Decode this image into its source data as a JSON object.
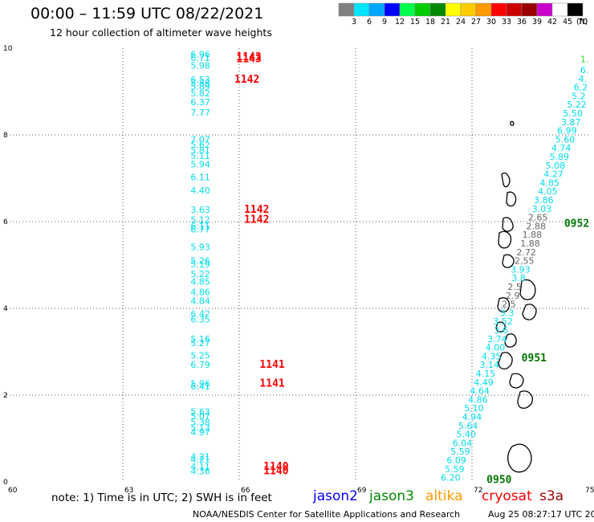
{
  "header": {
    "title": "00:00 – 11:59 UTC 08/22/2021",
    "subtitle": "12 hour collection of altimeter wave heights"
  },
  "colorbar": {
    "unit": "(ft)",
    "bins": [
      {
        "color": "#808080",
        "label": ""
      },
      {
        "color": "#00e5ff",
        "label": "3"
      },
      {
        "color": "#00a8ff",
        "label": "6"
      },
      {
        "color": "#0000ff",
        "label": "9"
      },
      {
        "color": "#00ff4c",
        "label": "12"
      },
      {
        "color": "#00cc00",
        "label": "15"
      },
      {
        "color": "#008800",
        "label": "18"
      },
      {
        "color": "#ffff00",
        "label": "21"
      },
      {
        "color": "#ffcc00",
        "label": "24"
      },
      {
        "color": "#ff9900",
        "label": "27"
      },
      {
        "color": "#ff0000",
        "label": "30"
      },
      {
        "color": "#cc0000",
        "label": "33"
      },
      {
        "color": "#990000",
        "label": "36"
      },
      {
        "color": "#cc00cc",
        "label": "39"
      },
      {
        "color": "#ffffff",
        "label": "42"
      },
      {
        "color": "#000000",
        "label": "45"
      }
    ],
    "tick_labels": [
      "3",
      "6",
      "9",
      "12",
      "15",
      "18",
      "21",
      "24",
      "27",
      "30",
      "33",
      "36",
      "39",
      "42",
      "45",
      "70"
    ]
  },
  "chart_data": {
    "type": "scatter",
    "title": "00:00 – 11:59 UTC 08/22/2021",
    "subtitle": "12 hour collection of altimeter wave heights",
    "xlim": [
      60,
      75
    ],
    "ylim": [
      0,
      10
    ],
    "x_ticks": [
      "60",
      "63",
      "66",
      "69",
      "72",
      "75"
    ],
    "y_ticks": [
      "0",
      "2",
      "4",
      "6",
      "8",
      "10"
    ],
    "grid": true,
    "colors": {
      "swh": "#00ddee",
      "time_red": "#ff0000",
      "time_green": "#007700",
      "swh_gray": "#666666"
    },
    "swh_points": [
      {
        "x": 65.0,
        "y": 9.86,
        "v": "6.96"
      },
      {
        "x": 65.0,
        "y": 9.78,
        "v": "6.71"
      },
      {
        "x": 65.0,
        "y": 9.6,
        "v": "5.98"
      },
      {
        "x": 65.0,
        "y": 9.28,
        "v": "6.53"
      },
      {
        "x": 65.0,
        "y": 9.19,
        "v": "5.88"
      },
      {
        "x": 65.0,
        "y": 9.12,
        "v": "5.89"
      },
      {
        "x": 65.0,
        "y": 8.96,
        "v": "5.82"
      },
      {
        "x": 65.0,
        "y": 8.76,
        "v": "6.37"
      },
      {
        "x": 65.0,
        "y": 8.52,
        "v": "7.77"
      },
      {
        "x": 65.0,
        "y": 7.9,
        "v": "7.07"
      },
      {
        "x": 65.0,
        "y": 7.78,
        "v": "5.62"
      },
      {
        "x": 65.0,
        "y": 7.65,
        "v": "5.81"
      },
      {
        "x": 65.0,
        "y": 7.52,
        "v": "5.11"
      },
      {
        "x": 65.0,
        "y": 7.32,
        "v": "5.94"
      },
      {
        "x": 65.0,
        "y": 7.03,
        "v": "6.11"
      },
      {
        "x": 65.0,
        "y": 6.72,
        "v": "4.40"
      },
      {
        "x": 65.0,
        "y": 6.28,
        "v": "3.63"
      },
      {
        "x": 65.0,
        "y": 6.05,
        "v": "5.12"
      },
      {
        "x": 65.0,
        "y": 5.9,
        "v": "6.11"
      },
      {
        "x": 65.0,
        "y": 5.82,
        "v": "6.77"
      },
      {
        "x": 65.0,
        "y": 5.42,
        "v": "5.93"
      },
      {
        "x": 65.0,
        "y": 5.1,
        "v": "5.26"
      },
      {
        "x": 65.0,
        "y": 5.02,
        "v": "5.19"
      },
      {
        "x": 65.0,
        "y": 4.8,
        "v": "5.22"
      },
      {
        "x": 65.0,
        "y": 4.62,
        "v": "4.85"
      },
      {
        "x": 65.0,
        "y": 4.38,
        "v": "4.86"
      },
      {
        "x": 65.0,
        "y": 4.18,
        "v": "4.84"
      },
      {
        "x": 65.0,
        "y": 3.88,
        "v": "6.42"
      },
      {
        "x": 65.0,
        "y": 3.75,
        "v": "6.35"
      },
      {
        "x": 65.0,
        "y": 3.3,
        "v": "5.16"
      },
      {
        "x": 65.0,
        "y": 3.2,
        "v": "5.27"
      },
      {
        "x": 65.0,
        "y": 2.92,
        "v": "5.25"
      },
      {
        "x": 65.0,
        "y": 2.7,
        "v": "6.79"
      },
      {
        "x": 65.0,
        "y": 2.27,
        "v": "5.96"
      },
      {
        "x": 65.0,
        "y": 2.2,
        "v": "6.41"
      },
      {
        "x": 65.0,
        "y": 1.62,
        "v": "5.63"
      },
      {
        "x": 65.0,
        "y": 1.52,
        "v": "5.07"
      },
      {
        "x": 65.0,
        "y": 1.38,
        "v": "5.38"
      },
      {
        "x": 65.0,
        "y": 1.25,
        "v": "5.13"
      },
      {
        "x": 65.0,
        "y": 1.15,
        "v": "4.97"
      },
      {
        "x": 65.0,
        "y": 0.58,
        "v": "4.21"
      },
      {
        "x": 65.0,
        "y": 0.52,
        "v": "4.21"
      },
      {
        "x": 65.0,
        "y": 0.35,
        "v": "4.11"
      },
      {
        "x": 65.0,
        "y": 0.25,
        "v": "4.36"
      },
      {
        "x": 74.9,
        "y": 9.75,
        "v": "1.",
        "c": "green"
      },
      {
        "x": 74.9,
        "y": 9.5,
        "v": "6."
      },
      {
        "x": 74.85,
        "y": 9.3,
        "v": "4."
      },
      {
        "x": 74.8,
        "y": 9.1,
        "v": "6.2"
      },
      {
        "x": 74.75,
        "y": 8.9,
        "v": "5.2"
      },
      {
        "x": 74.7,
        "y": 8.7,
        "v": "5.22"
      },
      {
        "x": 74.6,
        "y": 8.5,
        "v": "5.50"
      },
      {
        "x": 74.55,
        "y": 8.3,
        "v": "3.87"
      },
      {
        "x": 74.45,
        "y": 8.1,
        "v": "6.99"
      },
      {
        "x": 74.4,
        "y": 7.9,
        "v": "5.60"
      },
      {
        "x": 74.3,
        "y": 7.7,
        "v": "4.74"
      },
      {
        "x": 74.25,
        "y": 7.5,
        "v": "5.89"
      },
      {
        "x": 74.15,
        "y": 7.3,
        "v": "5.08"
      },
      {
        "x": 74.1,
        "y": 7.1,
        "v": "4.27"
      },
      {
        "x": 74.0,
        "y": 6.9,
        "v": "4.85"
      },
      {
        "x": 73.95,
        "y": 6.7,
        "v": "4.05"
      },
      {
        "x": 73.85,
        "y": 6.5,
        "v": "3.86"
      },
      {
        "x": 73.8,
        "y": 6.3,
        "v": "3.03"
      },
      {
        "x": 73.7,
        "y": 6.1,
        "v": "2.65",
        "c": "gray"
      },
      {
        "x": 73.65,
        "y": 5.9,
        "v": "2.88",
        "c": "gray"
      },
      {
        "x": 73.55,
        "y": 5.7,
        "v": "1.88",
        "c": "gray"
      },
      {
        "x": 73.5,
        "y": 5.5,
        "v": "1.88",
        "c": "gray"
      },
      {
        "x": 73.4,
        "y": 5.3,
        "v": "2.72",
        "c": "gray"
      },
      {
        "x": 73.35,
        "y": 5.1,
        "v": "2.55",
        "c": "gray"
      },
      {
        "x": 73.25,
        "y": 4.9,
        "v": "3.93"
      },
      {
        "x": 73.2,
        "y": 4.7,
        "v": "3.8"
      },
      {
        "x": 73.1,
        "y": 4.5,
        "v": "2.5",
        "c": "gray"
      },
      {
        "x": 73.05,
        "y": 4.3,
        "v": "2.9",
        "c": "gray"
      },
      {
        "x": 72.95,
        "y": 4.1,
        "v": "2.5",
        "c": "gray"
      },
      {
        "x": 72.9,
        "y": 3.9,
        "v": "3.3"
      },
      {
        "x": 72.8,
        "y": 3.7,
        "v": "3.52"
      },
      {
        "x": 72.75,
        "y": 3.5,
        "v": "3.6"
      },
      {
        "x": 72.65,
        "y": 3.3,
        "v": "3.74"
      },
      {
        "x": 72.6,
        "y": 3.1,
        "v": "4.00"
      },
      {
        "x": 72.5,
        "y": 2.9,
        "v": "4.35"
      },
      {
        "x": 72.45,
        "y": 2.7,
        "v": "3.14"
      },
      {
        "x": 72.35,
        "y": 2.5,
        "v": "4.15"
      },
      {
        "x": 72.3,
        "y": 2.3,
        "v": "4.49"
      },
      {
        "x": 72.2,
        "y": 2.1,
        "v": "4.64"
      },
      {
        "x": 72.15,
        "y": 1.9,
        "v": "4.86"
      },
      {
        "x": 72.05,
        "y": 1.7,
        "v": "5.10"
      },
      {
        "x": 72.0,
        "y": 1.5,
        "v": "4.94"
      },
      {
        "x": 71.9,
        "y": 1.3,
        "v": "5.64"
      },
      {
        "x": 71.85,
        "y": 1.1,
        "v": "5.40"
      },
      {
        "x": 71.75,
        "y": 0.9,
        "v": "6.04"
      },
      {
        "x": 71.7,
        "y": 0.7,
        "v": "5.59"
      },
      {
        "x": 71.6,
        "y": 0.5,
        "v": "6.09"
      },
      {
        "x": 71.55,
        "y": 0.3,
        "v": "5.59"
      },
      {
        "x": 71.45,
        "y": 0.1,
        "v": "6.20"
      }
    ],
    "time_labels": [
      {
        "x": 66.25,
        "y": 9.8,
        "v": "1143",
        "c": "red"
      },
      {
        "x": 66.25,
        "y": 9.75,
        "v": "1143",
        "c": "red"
      },
      {
        "x": 66.2,
        "y": 9.28,
        "v": "1142",
        "c": "red"
      },
      {
        "x": 66.45,
        "y": 6.28,
        "v": "1142",
        "c": "red"
      },
      {
        "x": 66.45,
        "y": 6.05,
        "v": "1142",
        "c": "red"
      },
      {
        "x": 66.85,
        "y": 2.7,
        "v": "1141",
        "c": "red"
      },
      {
        "x": 66.85,
        "y": 2.27,
        "v": "1141",
        "c": "red"
      },
      {
        "x": 66.95,
        "y": 0.35,
        "v": "1140",
        "c": "red"
      },
      {
        "x": 66.95,
        "y": 0.25,
        "v": "1140",
        "c": "red"
      },
      {
        "x": 74.7,
        "y": 5.95,
        "v": "0952",
        "c": "green"
      },
      {
        "x": 73.6,
        "y": 2.85,
        "v": "0951",
        "c": "green"
      },
      {
        "x": 72.7,
        "y": 0.05,
        "v": "0950",
        "c": "green"
      }
    ]
  },
  "footer": {
    "note": "note:  1) Time is in UTC;  2) SWH is in feet",
    "satellites": [
      {
        "name": "jason2",
        "color": "#0000ff"
      },
      {
        "name": "jason3",
        "color": "#008800"
      },
      {
        "name": "altika",
        "color": "#ff9900"
      },
      {
        "name": "cryosat",
        "color": "#ff0000"
      },
      {
        "name": "s3a",
        "color": "#990000"
      }
    ],
    "credit": "NOAA/NESDIS Center for Satellite Applications and Research",
    "stamp": "Aug 25 08:27:17 UTC 2021"
  }
}
